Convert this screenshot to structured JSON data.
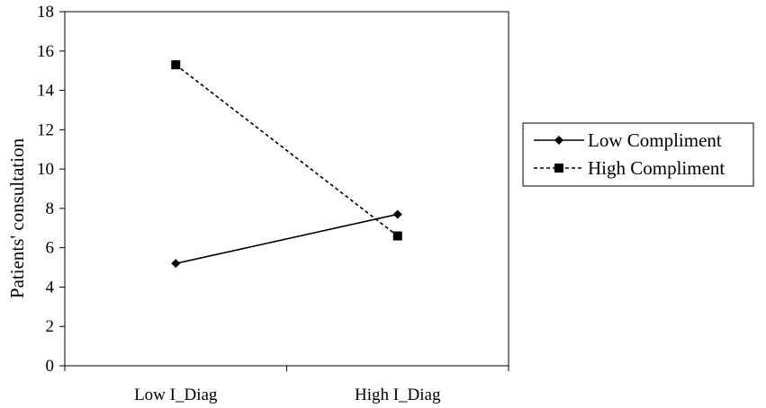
{
  "chart_data": {
    "type": "line",
    "categories": [
      "Low I_Diag",
      "High I_Diag"
    ],
    "series": [
      {
        "name": "Low Compliment",
        "values": [
          5.2,
          7.7
        ],
        "line_style": "solid",
        "marker": "diamond"
      },
      {
        "name": "High Compliment",
        "values": [
          15.3,
          6.6
        ],
        "line_style": "dashed",
        "marker": "square"
      }
    ],
    "xlabel": "",
    "ylabel": "Patients' consultation",
    "ylim": [
      0,
      18
    ],
    "yticks": [
      0,
      2,
      4,
      6,
      8,
      10,
      12,
      14,
      16,
      18
    ],
    "grid": false,
    "legend_position": "right"
  }
}
